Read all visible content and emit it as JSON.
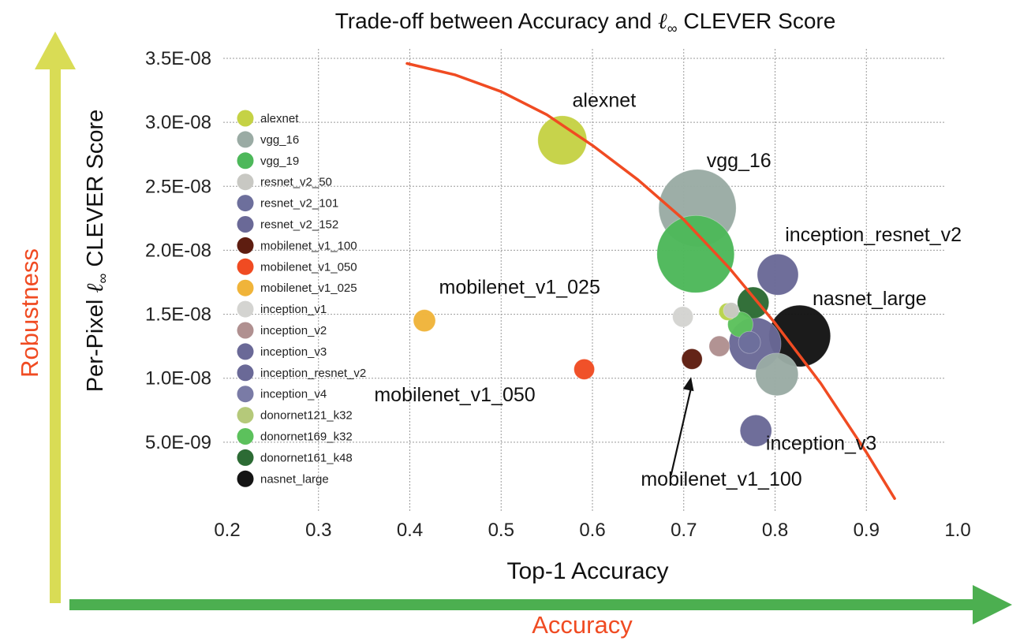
{
  "chart_data": {
    "type": "scatter",
    "title": {
      "pre": "Trade-off between Accuracy and ",
      "sym": "ℓ",
      "sub": "∞",
      "post": " CLEVER Score"
    },
    "xlabel": "Top-1 Accuracy",
    "ylabel": {
      "pre": "Per-Pixel ",
      "sym": "ℓ",
      "sub": "∞",
      "post": " CLEVER Score"
    },
    "outer_x_label": "Accuracy",
    "outer_y_label": "Robustness",
    "xlim": [
      0.2,
      1.0
    ],
    "ylim": [
      0,
      3.5e-08
    ],
    "x_ticks": [
      {
        "value": 0.2,
        "label": "0.2"
      },
      {
        "value": 0.3,
        "label": "0.3"
      },
      {
        "value": 0.4,
        "label": "0.4"
      },
      {
        "value": 0.5,
        "label": "0.5"
      },
      {
        "value": 0.6,
        "label": "0.6"
      },
      {
        "value": 0.7,
        "label": "0.7"
      },
      {
        "value": 0.8,
        "label": "0.8"
      },
      {
        "value": 0.9,
        "label": "0.9"
      },
      {
        "value": 1.0,
        "label": "1.0"
      }
    ],
    "y_ticks": [
      {
        "value": 5e-09,
        "label": "5.0E-09"
      },
      {
        "value": 1e-08,
        "label": "1.0E-08"
      },
      {
        "value": 1.5e-08,
        "label": "1.5E-08"
      },
      {
        "value": 2e-08,
        "label": "2.0E-08"
      },
      {
        "value": 2.5e-08,
        "label": "2.5E-08"
      },
      {
        "value": 3e-08,
        "label": "3.0E-08"
      },
      {
        "value": 3.5e-08,
        "label": "3.5E-08"
      }
    ],
    "grid": true,
    "legend_position": "left",
    "series": [
      {
        "name": "alexnet",
        "x": 0.567,
        "y": 2.86e-08,
        "size": 31,
        "color": "#c5d245"
      },
      {
        "name": "vgg_16",
        "x": 0.715,
        "y": 2.33e-08,
        "size": 49,
        "color": "#9aaba4"
      },
      {
        "name": "vgg_19",
        "x": 0.713,
        "y": 1.97e-08,
        "size": 49,
        "color": "#4db85a"
      },
      {
        "name": "resnet_v2_50",
        "x": 0.752,
        "y": 1.53e-08,
        "size": 10,
        "color": "#c8c8c3"
      },
      {
        "name": "resnet_v2_101",
        "x": 0.772,
        "y": 1.28e-08,
        "size": 14,
        "color": "#6d6f9c"
      },
      {
        "name": "resnet_v2_152",
        "x": 0.778,
        "y": 1.27e-08,
        "size": 33,
        "color": "#6a6997"
      },
      {
        "name": "mobilenet_v1_100",
        "x": 0.709,
        "y": 1.15e-08,
        "size": 13,
        "color": "#5e1d10"
      },
      {
        "name": "mobilenet_v1_050",
        "x": 0.591,
        "y": 1.07e-08,
        "size": 13,
        "color": "#f04b22"
      },
      {
        "name": "mobilenet_v1_025",
        "x": 0.416,
        "y": 1.45e-08,
        "size": 14,
        "color": "#f0b43a"
      },
      {
        "name": "inception_v1",
        "x": 0.699,
        "y": 1.48e-08,
        "size": 13,
        "color": "#d4d4d1"
      },
      {
        "name": "inception_v2",
        "x": 0.739,
        "y": 1.25e-08,
        "size": 13,
        "color": "#b09090"
      },
      {
        "name": "inception_v3",
        "x": 0.779,
        "y": 5.9e-09,
        "size": 20,
        "color": "#6a6997"
      },
      {
        "name": "inception_resnet_v2",
        "x": 0.803,
        "y": 1.81e-08,
        "size": 26,
        "color": "#6a6997"
      },
      {
        "name": "inception_v4",
        "x": 0.802,
        "y": 1.03e-08,
        "size": 27,
        "color": "#9aaba4"
      },
      {
        "name": "donornet121_k32",
        "x": 0.748,
        "y": 1.52e-08,
        "size": 11,
        "color": "#b8d34a"
      },
      {
        "name": "donornet169_k32",
        "x": 0.762,
        "y": 1.42e-08,
        "size": 16,
        "color": "#5cc15c"
      },
      {
        "name": "donornet161_k48",
        "x": 0.776,
        "y": 1.59e-08,
        "size": 20,
        "color": "#2c6b34"
      },
      {
        "name": "nasnet_large",
        "x": 0.827,
        "y": 1.33e-08,
        "size": 39,
        "color": "#141414"
      }
    ],
    "legend": [
      {
        "name": "alexnet",
        "color": "#c5d245"
      },
      {
        "name": "vgg_16",
        "color": "#9aaba4"
      },
      {
        "name": "vgg_19",
        "color": "#4db85a"
      },
      {
        "name": "resnet_v2_50",
        "color": "#c8c8c3"
      },
      {
        "name": "resnet_v2_101",
        "color": "#6d6f9c"
      },
      {
        "name": "resnet_v2_152",
        "color": "#6a6997"
      },
      {
        "name": "mobilenet_v1_100",
        "color": "#5e1d10"
      },
      {
        "name": "mobilenet_v1_050",
        "color": "#f04b22"
      },
      {
        "name": "mobilenet_v1_025",
        "color": "#f0b43a"
      },
      {
        "name": "inception_v1",
        "color": "#d4d4d1"
      },
      {
        "name": "inception_v2",
        "color": "#b09090"
      },
      {
        "name": "inception_v3",
        "color": "#6a6997"
      },
      {
        "name": "inception_resnet_v2",
        "color": "#6a6997"
      },
      {
        "name": "inception_v4",
        "color": "#7a7ba6"
      },
      {
        "name": "donornet121_k32",
        "color": "#b5c97a"
      },
      {
        "name": "donornet169_k32",
        "color": "#5cc15c"
      },
      {
        "name": "donornet161_k48",
        "color": "#2c6b34"
      },
      {
        "name": "nasnet_large",
        "color": "#141414"
      }
    ],
    "annotations": [
      {
        "text": "alexnet",
        "x": 0.578,
        "y": 3.12e-08
      },
      {
        "text": "vgg_16",
        "x": 0.725,
        "y": 2.65e-08
      },
      {
        "text": "inception_resnet_v2",
        "x": 0.811,
        "y": 2.07e-08
      },
      {
        "text": "nasnet_large",
        "x": 0.841,
        "y": 1.57e-08
      },
      {
        "text": "mobilenet_v1_025",
        "x": 0.432,
        "y": 1.66e-08
      },
      {
        "text": "mobilenet_v1_050",
        "x": 0.361,
        "y": 8.2e-09
      },
      {
        "text": "mobilenet_v1_100",
        "x": 0.653,
        "y": 1.6e-09
      },
      {
        "text": "inception_v3",
        "x": 0.79,
        "y": 4.4e-09
      }
    ],
    "arrow": {
      "from": {
        "x": 0.686,
        "y": 2.4e-09
      },
      "to": {
        "x": 0.708,
        "y": 1.01e-08
      }
    },
    "trend_curve": [
      [
        0.397,
        3.46e-08
      ],
      [
        0.45,
        3.37e-08
      ],
      [
        0.5,
        3.24e-08
      ],
      [
        0.55,
        3.06e-08
      ],
      [
        0.6,
        2.82e-08
      ],
      [
        0.65,
        2.55e-08
      ],
      [
        0.7,
        2.24e-08
      ],
      [
        0.75,
        1.86e-08
      ],
      [
        0.8,
        1.43e-08
      ],
      [
        0.85,
        9.6e-09
      ],
      [
        0.9,
        4.2e-09
      ],
      [
        0.931,
        6e-10
      ]
    ],
    "colors": {
      "trend": "#f04b22",
      "outer_y_arrow": "#d9dc55",
      "outer_x_arrow": "#4caf50",
      "outer_label": "#f04b22",
      "grid": "#9a9a9a"
    }
  }
}
